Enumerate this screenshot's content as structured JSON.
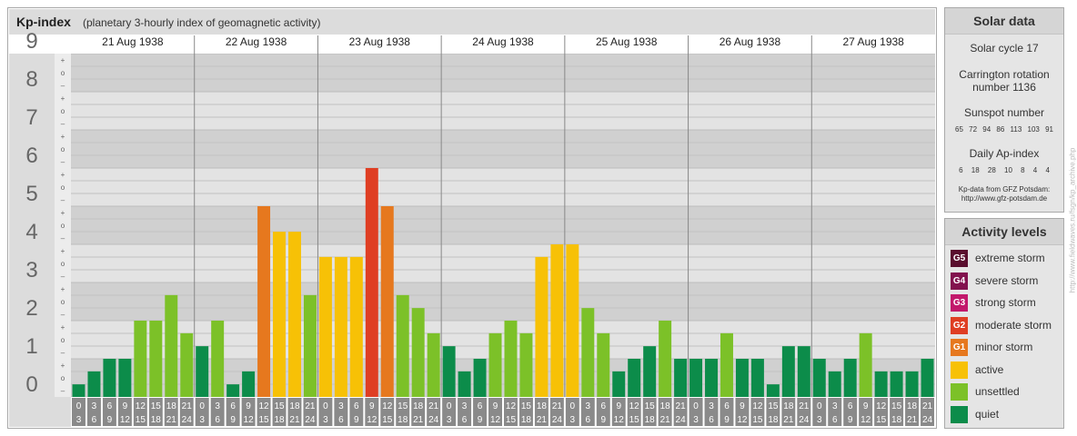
{
  "header": {
    "title": "Kp-index",
    "subtitle": "(planetary 3-hourly index of geomagnetic activity)"
  },
  "solar_data": {
    "title": "Solar data",
    "cycle": "Solar cycle 17",
    "carrington_line1": "Carrington rotation",
    "carrington_line2": "number 1136",
    "sunspot_title": "Sunspot number",
    "sunspot_values": "65 72 94 86 113 103 91",
    "ap_title": "Daily Ap-index",
    "ap_values": "6 18 28 10 8 4 4",
    "source_line1": "Kp-data from GFZ Potsdam:",
    "source_line2": "http://www.gfz-potsdam.de"
  },
  "activity_levels": {
    "title": "Activity levels",
    "items": [
      {
        "badge": "G5",
        "label": "extreme storm",
        "color": "#5a0e2e"
      },
      {
        "badge": "G4",
        "label": "severe storm",
        "color": "#82124e"
      },
      {
        "badge": "G3",
        "label": "strong storm",
        "color": "#c2186b"
      },
      {
        "badge": "G2",
        "label": "moderate storm",
        "color": "#df3e23"
      },
      {
        "badge": "G1",
        "label": "minor storm",
        "color": "#e6781e"
      },
      {
        "badge": "",
        "label": "active",
        "color": "#f7c106"
      },
      {
        "badge": "",
        "label": "unsettled",
        "color": "#7cc128"
      },
      {
        "badge": "",
        "label": "quiet",
        "color": "#0c8c4a"
      }
    ]
  },
  "credit": "http://www.fieldwaves.ru/fsgn/kp_archive.php",
  "chart_data": {
    "type": "bar",
    "title": "Kp-index",
    "subtitle": "(planetary 3-hourly index of geomagnetic activity)",
    "ylim": [
      0,
      9
    ],
    "y_major_ticks": [
      "0",
      "1",
      "2",
      "3",
      "4",
      "5",
      "6",
      "7",
      "8",
      "9"
    ],
    "y_minor_labels": [
      "+",
      "o",
      "–"
    ],
    "days": [
      "21 Aug 1938",
      "22 Aug 1938",
      "23 Aug 1938",
      "24 Aug 1938",
      "25 Aug 1938",
      "26 Aug 1938",
      "27 Aug 1938"
    ],
    "interval_start_labels": [
      "0",
      "3",
      "6",
      "9",
      "12",
      "15",
      "18",
      "21"
    ],
    "interval_end_labels": [
      "3",
      "6",
      "9",
      "12",
      "15",
      "18",
      "21",
      "24"
    ],
    "values": [
      0.33,
      0.67,
      1.0,
      1.0,
      2.0,
      2.0,
      2.67,
      1.67,
      1.33,
      2.0,
      0.33,
      0.67,
      5.0,
      4.33,
      4.33,
      2.67,
      3.67,
      3.67,
      3.67,
      6.0,
      5.0,
      2.67,
      2.33,
      1.67,
      1.33,
      0.67,
      1.0,
      1.67,
      2.0,
      1.67,
      3.67,
      4.0,
      4.0,
      2.33,
      1.67,
      0.67,
      1.0,
      1.33,
      2.0,
      1.0,
      1.0,
      1.0,
      1.67,
      1.0,
      1.0,
      0.33,
      1.33,
      1.33,
      1.0,
      0.67,
      1.0,
      1.67,
      0.67,
      0.67,
      0.67,
      1.0
    ],
    "level_colors": {
      "quiet": "#0c8c4a",
      "unsettled": "#7cc128",
      "active": "#f7c106",
      "minor_storm": "#e6781e",
      "moderate_storm": "#df3e23"
    },
    "grid": true
  }
}
